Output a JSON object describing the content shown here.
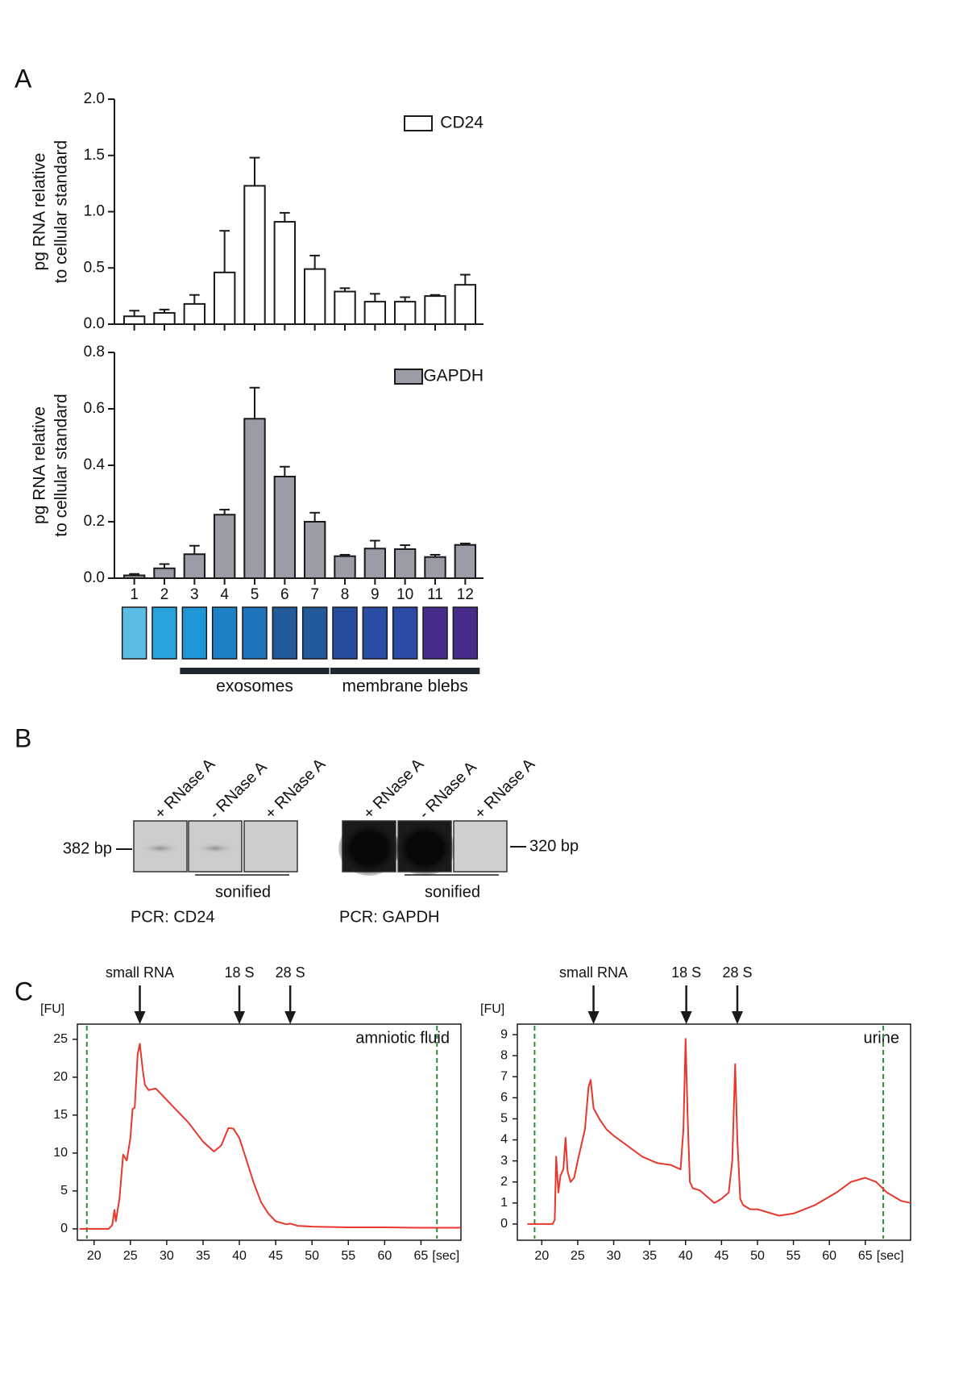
{
  "panel_labels": [
    "A",
    "B",
    "C"
  ],
  "chart_data": [
    {
      "type": "bar",
      "ylabel": [
        "pg RNA relative",
        "to cellular standard"
      ],
      "series": [
        {
          "name": "CD24",
          "color": "#ffffff",
          "values": [
            0.07,
            0.1,
            0.18,
            0.46,
            1.23,
            0.91,
            0.49,
            0.29,
            0.2,
            0.2,
            0.25,
            0.35
          ],
          "errors": [
            0.05,
            0.03,
            0.08,
            0.37,
            0.25,
            0.08,
            0.12,
            0.03,
            0.07,
            0.04,
            0.01,
            0.09
          ]
        }
      ],
      "ylim": [
        0,
        2
      ],
      "yticks": [
        {
          "value": 0,
          "label": "0.0"
        },
        0.5,
        {
          "value": 1,
          "label": "1.0"
        },
        1.5,
        {
          "value": 2,
          "label": "2.0"
        }
      ],
      "legend": "upper right"
    },
    {
      "type": "bar",
      "ylabel": [
        "pg RNA relative",
        "to cellular standard"
      ],
      "categories": [
        "1",
        "2",
        "3",
        "4",
        "5",
        "6",
        "7",
        "8",
        "9",
        "10",
        "11",
        "12"
      ],
      "series": [
        {
          "name": "GAPDH",
          "color": "#9a9ca6",
          "values": [
            0.01,
            0.035,
            0.085,
            0.225,
            0.565,
            0.36,
            0.2,
            0.078,
            0.105,
            0.103,
            0.075,
            0.118
          ],
          "errors": [
            0.005,
            0.015,
            0.03,
            0.018,
            0.11,
            0.035,
            0.032,
            0.005,
            0.028,
            0.014,
            0.008,
            0.005
          ]
        }
      ],
      "ylim": [
        0,
        0.8
      ],
      "yticks": [
        {
          "value": 0,
          "label": "0.0"
        },
        0.2,
        0.4,
        0.6,
        0.8
      ],
      "legend": "upper right",
      "fraction_colors": [
        "#5bbde6",
        "#2aa2dc",
        "#1f97d6",
        "#1e80c6",
        "#1f74bd",
        "#235a9c",
        "#235a9c",
        "#264c9e",
        "#2a4ea6",
        "#2c4ba6",
        "#472c8c",
        "#472c8c"
      ],
      "groups": [
        {
          "label": "exosomes",
          "first": "3",
          "last": "7"
        },
        {
          "label": "membrane blebs",
          "first": "8",
          "last": "12"
        }
      ]
    },
    {
      "type": "line",
      "ylabel": "[FU]",
      "xunit": "[sec]",
      "annotation": "amniotic fluid",
      "x": [
        18,
        22,
        22.5,
        22.8,
        23,
        23.5,
        24,
        24.5,
        25,
        25.3,
        25.6,
        26,
        26.3,
        26.7,
        27,
        27.5,
        28.5,
        29.5,
        31,
        33,
        35,
        36.5,
        37.5,
        38.5,
        39.2,
        40,
        41,
        42,
        43,
        44,
        45,
        46.5,
        47,
        48,
        50,
        55,
        60,
        65,
        70.5
      ],
      "series": [
        {
          "name": null,
          "color": "#e8372c",
          "values": [
            0,
            0,
            0.5,
            2.5,
            1,
            4,
            9.8,
            9,
            12,
            15.8,
            16,
            23,
            24.4,
            21,
            19,
            18.3,
            18.5,
            17.5,
            16,
            14,
            11.5,
            10.2,
            11,
            13.3,
            13.2,
            12,
            9,
            6,
            3.5,
            2,
            1,
            0.6,
            0.7,
            0.4,
            0.3,
            0.2,
            0.2,
            0.15,
            0.15
          ]
        }
      ],
      "xlim": [
        17.7,
        70.5
      ],
      "xticks": [
        20,
        25,
        30,
        35,
        40,
        45,
        50,
        55,
        60,
        65
      ],
      "ylim": [
        -1.5,
        27
      ],
      "yticks": [
        0,
        5,
        10,
        15,
        20,
        25
      ],
      "cutoff_lines": {
        "x": [
          19,
          67.2
        ],
        "color": "#2e8b3e"
      },
      "markers": [
        {
          "label": "small RNA",
          "x": 26.3
        },
        {
          "label": "18 S",
          "x": 40
        },
        {
          "label": "28 S",
          "x": 47
        }
      ]
    },
    {
      "type": "line",
      "ylabel": "[FU]",
      "xunit": "[sec]",
      "annotation": "urine",
      "x": [
        18,
        21.5,
        21.8,
        22,
        22.3,
        22.6,
        23,
        23.3,
        23.6,
        24,
        24.5,
        25,
        26,
        26.5,
        26.8,
        27.2,
        28,
        29,
        30,
        32,
        34,
        36,
        38,
        39.3,
        39.7,
        40,
        40.3,
        40.6,
        41,
        42,
        43,
        44,
        45,
        46,
        46.5,
        46.9,
        47.2,
        47.6,
        48,
        49,
        50,
        53,
        55,
        58,
        61,
        63,
        65,
        66.5,
        68,
        70,
        71.3
      ],
      "series": [
        {
          "name": null,
          "color": "#e8372c",
          "values": [
            0,
            0,
            0.2,
            3.2,
            1.5,
            2.3,
            2.6,
            4.1,
            2.5,
            2,
            2.2,
            3,
            4.5,
            6.5,
            6.85,
            5.5,
            5,
            4.5,
            4.2,
            3.7,
            3.2,
            2.9,
            2.8,
            2.6,
            4.5,
            8.8,
            5,
            2,
            1.7,
            1.6,
            1.3,
            1,
            1.2,
            1.5,
            3,
            7.6,
            4,
            1.2,
            0.9,
            0.7,
            0.7,
            0.4,
            0.5,
            0.9,
            1.5,
            2,
            2.2,
            2,
            1.5,
            1.1,
            1
          ]
        }
      ],
      "xlim": [
        16.6,
        71.3
      ],
      "xticks": [
        20,
        25,
        30,
        35,
        40,
        45,
        50,
        55,
        60,
        65
      ],
      "ylim": [
        -0.77,
        9.5
      ],
      "yticks": [
        0,
        1,
        2,
        3,
        4,
        5,
        6,
        7,
        8,
        9
      ],
      "cutoff_lines": {
        "x": [
          19,
          67.5
        ],
        "color": "#2e8b3e"
      },
      "markers": [
        {
          "label": "small RNA",
          "x": 27.2
        },
        {
          "label": "18 S",
          "x": 40.1
        },
        {
          "label": "28 S",
          "x": 47.2
        }
      ]
    }
  ],
  "gels": [
    {
      "size_label": "382 bp",
      "lanes": [
        "+ RNase A",
        "- RNase A",
        "+ RNase A"
      ],
      "group_label": "sonified",
      "pcr_label": "PCR: CD24"
    },
    {
      "size_label": "320 bp",
      "lanes": [
        "+ RNase A",
        "- RNase A",
        "+ RNase A"
      ],
      "group_label": "sonified",
      "pcr_label": "PCR: GAPDH"
    }
  ]
}
